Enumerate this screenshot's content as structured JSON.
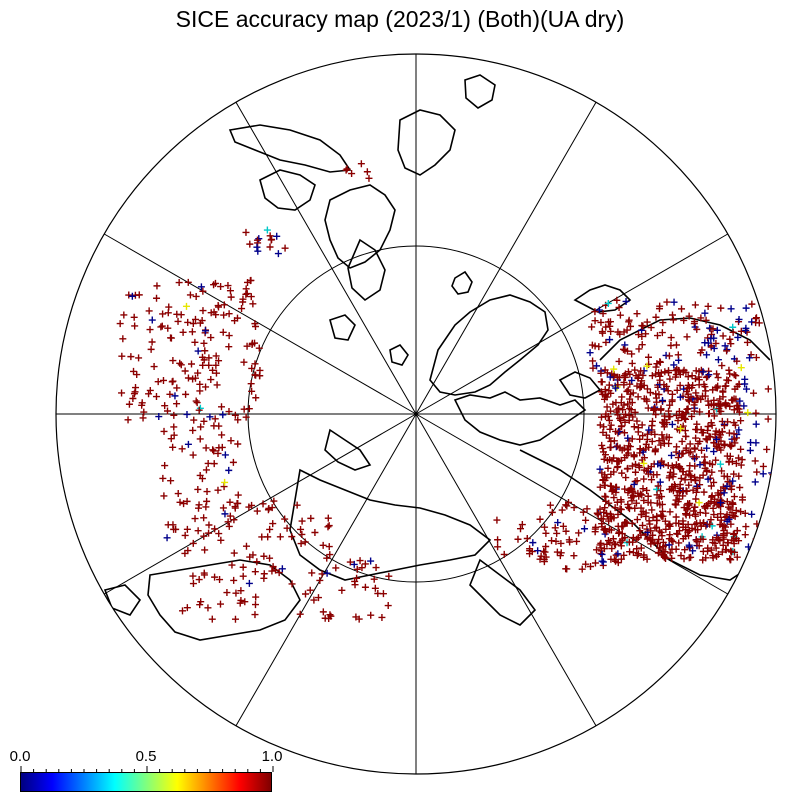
{
  "title": "SICE accuracy map (2023/1) (Both)(UA dry)",
  "colorbar": {
    "min_label": "0.0",
    "mid_label": "0.5",
    "max_label": "1.0",
    "colors": [
      "#00007f",
      "#0000ff",
      "#007fff",
      "#00ffff",
      "#7fff7f",
      "#ffff00",
      "#ff7f00",
      "#ff0000",
      "#7f0000"
    ]
  },
  "map": {
    "projection": "north-polar-stereographic",
    "marker_colors": {
      "high": "#8b0000",
      "low": "#00008b",
      "mid": "#00c8c8",
      "mid_high": "#e6e600"
    },
    "regions": [
      {
        "name": "north-america",
        "value_mostly": 1.0
      },
      {
        "name": "east-asia-russia",
        "value_mostly": 1.0
      },
      {
        "name": "europe",
        "value_mostly": 1.0
      },
      {
        "name": "north-atlantic",
        "value_mostly": 1.0
      }
    ]
  }
}
